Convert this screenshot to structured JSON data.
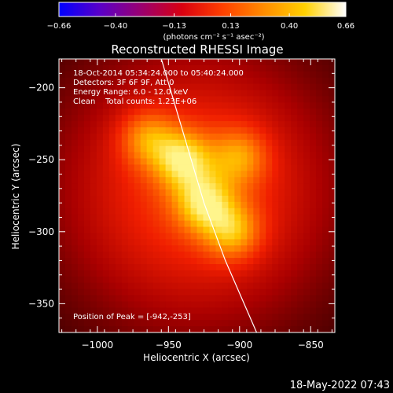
{
  "chart_data": {
    "type": "heatmap",
    "title": "Reconstructed RHESSI Image",
    "xlabel": "Heliocentric X (arcsec)",
    "ylabel": "Heliocentric Y (arcsec)",
    "xlim": [
      -1027,
      -833
    ],
    "ylim": [
      -370,
      -180
    ],
    "x_ticks": [
      -1000,
      -950,
      -900,
      -850
    ],
    "y_ticks": [
      -200,
      -250,
      -300,
      -350
    ],
    "x_tick_labels": [
      "−1000",
      "−950",
      "−900",
      "−850"
    ],
    "y_tick_labels": [
      "−200",
      "−250",
      "−300",
      "−350"
    ],
    "colorbar": {
      "min": -0.66,
      "max": 0.66,
      "ticks": [
        -0.66,
        -0.4,
        -0.13,
        0.13,
        0.4,
        0.66
      ],
      "tick_labels": [
        "−0.66",
        "−0.40",
        "−0.13",
        "0.13",
        "0.40",
        "0.66"
      ],
      "units_label": "(photons cm⁻² s⁻¹ asec⁻²)",
      "colors": [
        "#0000ff",
        "#5a00c8",
        "#9a0070",
        "#d80010",
        "#ff4000",
        "#ff8c00",
        "#ffd000",
        "#ffffff"
      ]
    },
    "sources": [
      {
        "x": -940,
        "y": -250,
        "amplitude": 1.0
      },
      {
        "x": -925,
        "y": -280,
        "amplitude": 0.95
      },
      {
        "x": -905,
        "y": -300,
        "amplitude": 0.85
      },
      {
        "x": -965,
        "y": -235,
        "amplitude": 0.75
      },
      {
        "x": -900,
        "y": -248,
        "amplitude": 0.7
      }
    ],
    "limb_curve": [
      [
        -955,
        -180
      ],
      [
        -940,
        -230
      ],
      [
        -925,
        -280
      ],
      [
        -910,
        -320
      ],
      [
        -888,
        -370
      ]
    ],
    "annotations": [
      "18-Oct-2014 05:34:24.000 to 05:40:24.000",
      "Detectors: 3F 6F 9F, Att 0",
      "Energy Range: 6.0 - 12.0 keV",
      "Clean    Total counts: 1.23E+06"
    ],
    "peak_label": "Position of Peak = [-942,-253]",
    "timestamp": "18-May-2022 07:43"
  }
}
